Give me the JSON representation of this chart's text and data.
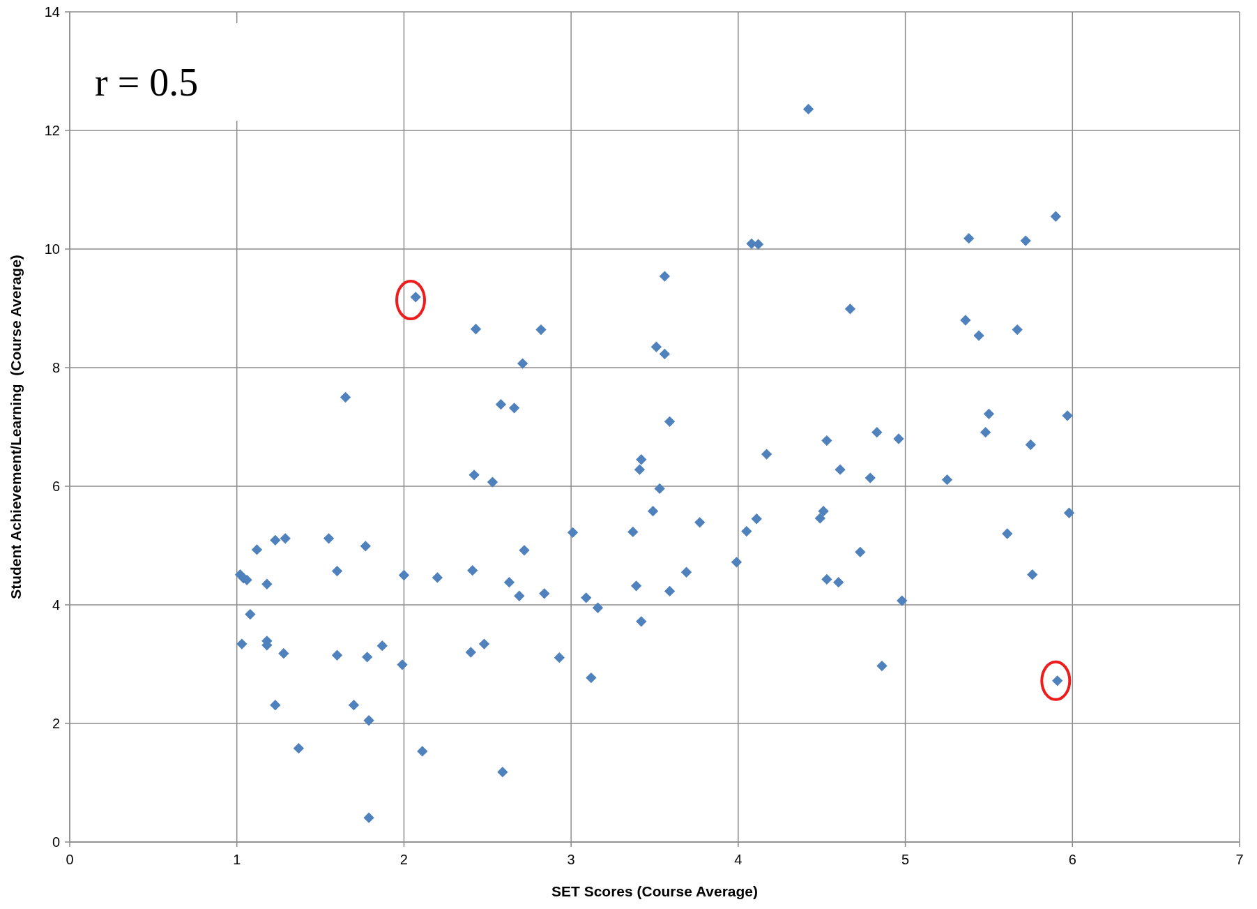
{
  "chart_data": {
    "type": "scatter",
    "xlabel": "SET Scores (Course Average)",
    "ylabel": "Student Achievement/Learning  (Course Average)",
    "annotations": [
      "r = 0.5"
    ],
    "xlim": [
      0,
      7
    ],
    "xticks": [
      0,
      1,
      2,
      3,
      4,
      5,
      6,
      7
    ],
    "ylim": [
      0,
      14
    ],
    "yticks": [
      0,
      2,
      4,
      6,
      8,
      10,
      12,
      14
    ],
    "grid": true,
    "marker": "diamond",
    "series": [
      {
        "color": "#4f81bd",
        "x": [
          1.02,
          1.04,
          1.06,
          1.03,
          1.08,
          1.12,
          1.18,
          1.18,
          1.18,
          1.23,
          1.29,
          1.23,
          1.28,
          1.37,
          1.55,
          1.6,
          1.6,
          1.65,
          1.77,
          1.78,
          1.7,
          1.79,
          1.79,
          1.87,
          2.0,
          1.99,
          2.07,
          2.11,
          2.2,
          2.43,
          2.42,
          2.41,
          2.4,
          2.48,
          2.53,
          2.58,
          2.66,
          2.59,
          2.63,
          2.69,
          2.71,
          2.72,
          2.82,
          2.84,
          2.93,
          3.01,
          3.09,
          3.12,
          3.16,
          3.37,
          3.39,
          3.41,
          3.42,
          3.42,
          3.49,
          3.51,
          3.53,
          3.56,
          3.56,
          3.59,
          3.59,
          3.69,
          3.77,
          3.99,
          4.05,
          4.08,
          4.12,
          4.11,
          4.17,
          4.42,
          4.49,
          4.51,
          4.53,
          4.53,
          4.6,
          4.61,
          4.67,
          4.73,
          4.79,
          4.83,
          4.86,
          4.96,
          4.98,
          5.25,
          5.36,
          5.38,
          5.44,
          5.48,
          5.5,
          5.61,
          5.67,
          5.72,
          5.75,
          5.76,
          5.9,
          5.91,
          5.97,
          5.98
        ],
        "values": [
          4.51,
          4.45,
          4.42,
          3.34,
          3.84,
          4.93,
          4.35,
          3.39,
          3.32,
          5.09,
          5.12,
          2.31,
          3.18,
          1.58,
          5.12,
          4.57,
          3.15,
          7.5,
          4.99,
          3.12,
          2.31,
          2.05,
          0.41,
          3.31,
          4.5,
          2.99,
          9.19,
          1.53,
          4.46,
          8.65,
          6.19,
          4.58,
          3.2,
          3.34,
          6.07,
          7.38,
          7.32,
          1.18,
          4.38,
          4.15,
          8.07,
          4.92,
          8.64,
          4.19,
          3.11,
          5.22,
          4.12,
          2.77,
          3.95,
          5.23,
          4.32,
          6.28,
          6.45,
          3.72,
          5.58,
          8.35,
          5.96,
          9.54,
          8.23,
          7.09,
          4.23,
          4.55,
          5.39,
          4.72,
          5.24,
          10.09,
          10.08,
          5.45,
          6.54,
          12.36,
          5.46,
          5.58,
          6.77,
          4.43,
          4.38,
          6.28,
          8.99,
          4.89,
          6.14,
          6.91,
          2.97,
          6.8,
          4.07,
          6.11,
          8.8,
          10.18,
          8.54,
          6.91,
          7.22,
          5.2,
          8.64,
          10.14,
          6.7,
          4.51,
          10.55,
          2.72,
          7.19,
          5.55
        ]
      }
    ]
  }
}
